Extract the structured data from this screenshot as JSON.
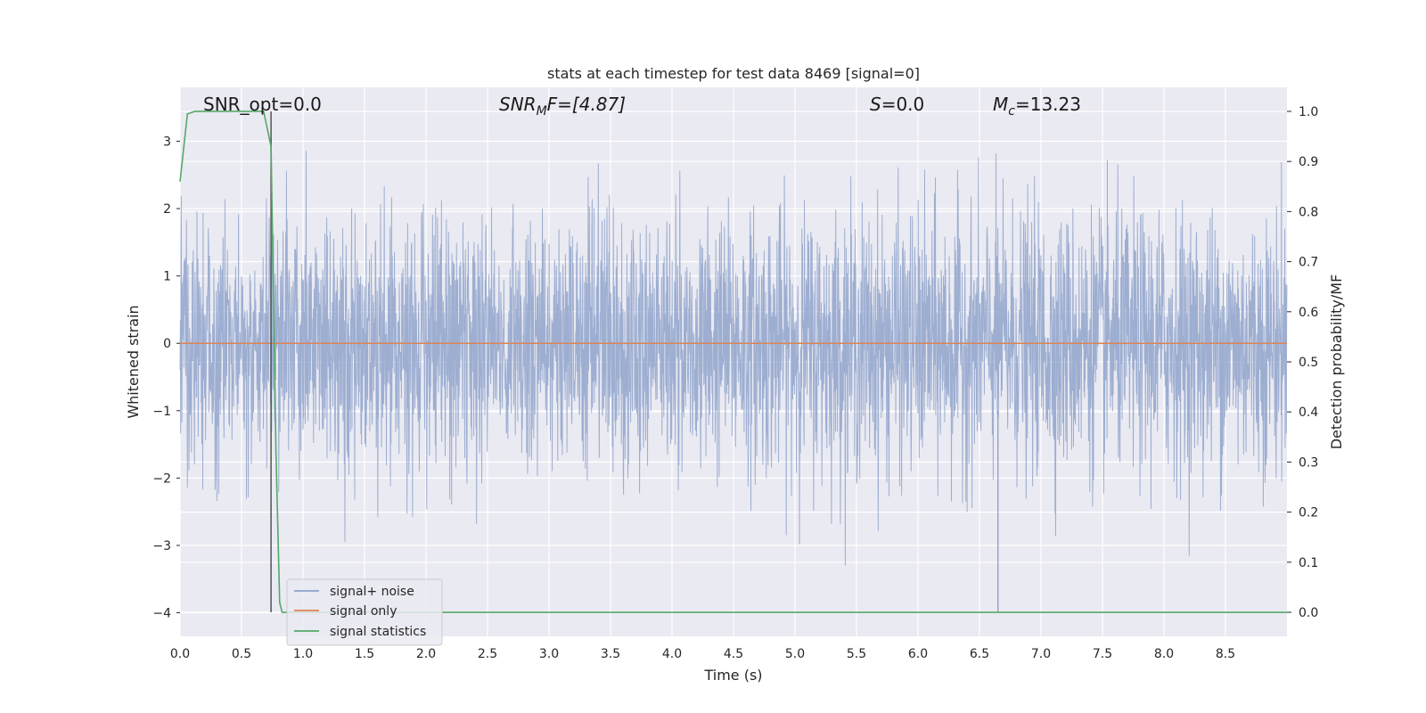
{
  "chart_data": {
    "type": "line",
    "title": "stats at each timestep for test data 8469 [signal=0]",
    "xlabel": "Time (s)",
    "ylabel": "Whitened strain",
    "y2label": "Detection probability/MF",
    "xlim": [
      0,
      9.0
    ],
    "ylim": [
      -4.35,
      3.8
    ],
    "y2lim": [
      -0.048,
      1.048
    ],
    "x_ticks": [
      "0.0",
      "0.5",
      "1.0",
      "1.5",
      "2.0",
      "2.5",
      "3.0",
      "3.5",
      "4.0",
      "4.5",
      "5.0",
      "5.5",
      "6.0",
      "6.5",
      "7.0",
      "7.5",
      "8.0",
      "8.5"
    ],
    "y_ticks": [
      "3",
      "2",
      "1",
      "0",
      "−1",
      "−2",
      "−3",
      "−4"
    ],
    "y2_ticks": [
      "1.0",
      "0.9",
      "0.8",
      "0.7",
      "0.6",
      "0.5",
      "0.4",
      "0.3",
      "0.2",
      "0.1",
      "0.0"
    ],
    "grid": true,
    "legend_placement": "lower-left",
    "annotations": {
      "snr_opt": "SNR_opt=0.0",
      "snr_mf_main": "SNR",
      "snr_mf_sub": "M",
      "snr_mf_rest": "F=[4.87]",
      "s_main": "S",
      "s_rest": "=0.0",
      "mc_main": "M",
      "mc_sub": "c",
      "mc_rest": "=13.23"
    },
    "series": [
      {
        "name": "signal+ noise",
        "color": "#8fa3cb",
        "description_values": {
          "envelope_max_y": 3.45,
          "envelope_min_y": -4.0,
          "typical_band_y": [
            -1.3,
            1.4
          ]
        }
      },
      {
        "name": "signal only",
        "color": "#dd8452",
        "x": [
          0,
          9.0
        ],
        "y": [
          0,
          0
        ]
      },
      {
        "name": "signal statistics",
        "color": "#55a868",
        "axis": "right",
        "x": [
          0,
          0.06,
          0.12,
          0.5,
          0.68,
          0.74,
          0.78,
          0.81,
          0.83,
          9.0
        ],
        "y": [
          0.86,
          0.995,
          1.0,
          1.0,
          1.0,
          0.93,
          0.32,
          0.02,
          0.0,
          0.0
        ]
      }
    ],
    "vertical_marker": {
      "x": 0.74,
      "color": "#555555"
    }
  }
}
